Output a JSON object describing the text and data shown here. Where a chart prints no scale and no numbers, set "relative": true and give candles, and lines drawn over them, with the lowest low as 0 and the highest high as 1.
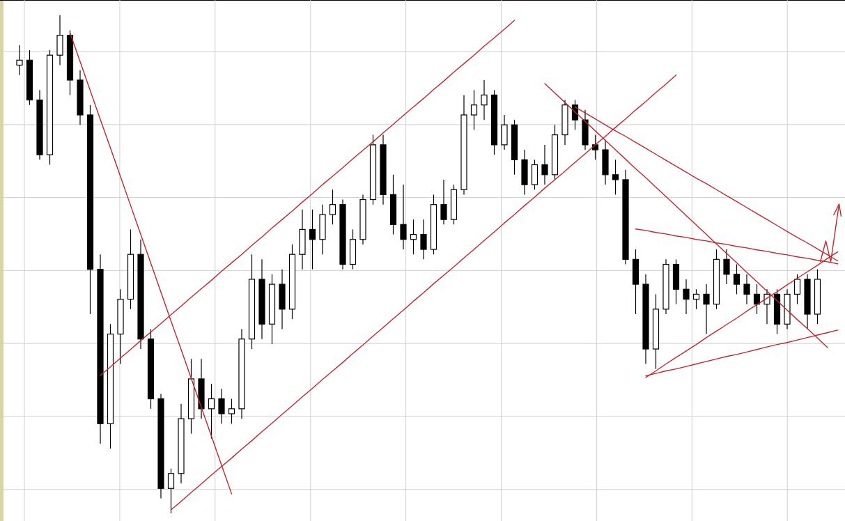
{
  "chart_data": {
    "type": "candlestick",
    "relative": true,
    "grid": true,
    "categories": [
      null,
      null,
      null,
      null,
      null,
      null,
      null,
      null,
      null,
      null,
      null,
      null,
      null,
      null,
      null,
      null,
      null,
      null,
      null,
      null,
      null,
      null,
      null,
      null,
      null,
      null,
      null,
      null,
      null,
      null,
      null,
      null,
      null,
      null,
      null,
      null,
      null,
      null,
      null,
      null,
      null,
      null,
      null,
      null,
      null,
      null,
      null,
      null,
      null,
      null,
      null,
      null,
      null,
      null,
      null,
      null,
      null,
      null,
      null,
      null,
      null,
      null,
      null,
      null,
      null,
      null,
      null,
      null,
      null,
      null,
      null,
      null,
      null,
      null,
      null,
      null,
      null,
      null,
      null,
      null,
      null,
      null
    ],
    "ohlc": [
      [
        0.9,
        0.94,
        0.88,
        0.91
      ],
      [
        0.91,
        0.93,
        0.82,
        0.83
      ],
      [
        0.83,
        0.85,
        0.71,
        0.72
      ],
      [
        0.72,
        0.93,
        0.7,
        0.92
      ],
      [
        0.92,
        1.0,
        0.9,
        0.96
      ],
      [
        0.96,
        0.97,
        0.84,
        0.87
      ],
      [
        0.87,
        0.89,
        0.78,
        0.8
      ],
      [
        0.8,
        0.82,
        0.4,
        0.49
      ],
      [
        0.49,
        0.52,
        0.14,
        0.18
      ],
      [
        0.18,
        0.38,
        0.13,
        0.36
      ],
      [
        0.36,
        0.45,
        0.3,
        0.43
      ],
      [
        0.43,
        0.57,
        0.41,
        0.52
      ],
      [
        0.52,
        0.55,
        0.33,
        0.35
      ],
      [
        0.35,
        0.37,
        0.21,
        0.23
      ],
      [
        0.23,
        0.24,
        0.03,
        0.05
      ],
      [
        0.05,
        0.09,
        0.0,
        0.08
      ],
      [
        0.08,
        0.22,
        0.06,
        0.19
      ],
      [
        0.19,
        0.31,
        0.16,
        0.27
      ],
      [
        0.27,
        0.31,
        0.19,
        0.21
      ],
      [
        0.21,
        0.26,
        0.15,
        0.23
      ],
      [
        0.23,
        0.25,
        0.18,
        0.2
      ],
      [
        0.2,
        0.23,
        0.18,
        0.21
      ],
      [
        0.21,
        0.37,
        0.19,
        0.35
      ],
      [
        0.35,
        0.52,
        0.33,
        0.47
      ],
      [
        0.47,
        0.51,
        0.35,
        0.38
      ],
      [
        0.38,
        0.48,
        0.34,
        0.46
      ],
      [
        0.46,
        0.49,
        0.37,
        0.41
      ],
      [
        0.41,
        0.54,
        0.39,
        0.52
      ],
      [
        0.52,
        0.61,
        0.49,
        0.57
      ],
      [
        0.57,
        0.61,
        0.49,
        0.55
      ],
      [
        0.55,
        0.62,
        0.52,
        0.6
      ],
      [
        0.6,
        0.65,
        0.58,
        0.62
      ],
      [
        0.62,
        0.63,
        0.49,
        0.5
      ],
      [
        0.5,
        0.57,
        0.49,
        0.55
      ],
      [
        0.55,
        0.64,
        0.54,
        0.63
      ],
      [
        0.63,
        0.76,
        0.62,
        0.74
      ],
      [
        0.74,
        0.76,
        0.62,
        0.64
      ],
      [
        0.64,
        0.68,
        0.56,
        0.58
      ],
      [
        0.58,
        0.66,
        0.53,
        0.55
      ],
      [
        0.55,
        0.59,
        0.52,
        0.56
      ],
      [
        0.56,
        0.59,
        0.51,
        0.53
      ],
      [
        0.53,
        0.64,
        0.52,
        0.62
      ],
      [
        0.62,
        0.67,
        0.58,
        0.59
      ],
      [
        0.59,
        0.66,
        0.58,
        0.65
      ],
      [
        0.65,
        0.84,
        0.64,
        0.8
      ],
      [
        0.8,
        0.85,
        0.77,
        0.82
      ],
      [
        0.82,
        0.87,
        0.79,
        0.84
      ],
      [
        0.84,
        0.85,
        0.72,
        0.74
      ],
      [
        0.74,
        0.8,
        0.73,
        0.78
      ],
      [
        0.78,
        0.79,
        0.68,
        0.71
      ],
      [
        0.71,
        0.73,
        0.64,
        0.66
      ],
      [
        0.66,
        0.71,
        0.65,
        0.7
      ],
      [
        0.7,
        0.74,
        0.66,
        0.68
      ],
      [
        0.68,
        0.78,
        0.67,
        0.76
      ],
      [
        0.76,
        0.83,
        0.74,
        0.82
      ],
      [
        0.82,
        0.83,
        0.77,
        0.79
      ],
      [
        0.79,
        0.81,
        0.73,
        0.74
      ],
      [
        0.74,
        0.76,
        0.71,
        0.73
      ],
      [
        0.73,
        0.75,
        0.66,
        0.68
      ],
      [
        0.68,
        0.71,
        0.64,
        0.67
      ],
      [
        0.67,
        0.69,
        0.5,
        0.51
      ],
      [
        0.51,
        0.53,
        0.4,
        0.46
      ],
      [
        0.46,
        0.48,
        0.3,
        0.33
      ],
      [
        0.33,
        0.44,
        0.29,
        0.41
      ],
      [
        0.41,
        0.51,
        0.4,
        0.5
      ],
      [
        0.5,
        0.51,
        0.42,
        0.45
      ],
      [
        0.45,
        0.47,
        0.4,
        0.43
      ],
      [
        0.43,
        0.45,
        0.41,
        0.44
      ],
      [
        0.44,
        0.46,
        0.36,
        0.42
      ],
      [
        0.42,
        0.53,
        0.41,
        0.51
      ],
      [
        0.51,
        0.53,
        0.46,
        0.48
      ],
      [
        0.48,
        0.5,
        0.44,
        0.46
      ],
      [
        0.46,
        0.48,
        0.42,
        0.44
      ],
      [
        0.44,
        0.46,
        0.4,
        0.42
      ],
      [
        0.42,
        0.45,
        0.38,
        0.44
      ],
      [
        0.44,
        0.45,
        0.36,
        0.38
      ],
      [
        0.38,
        0.45,
        0.37,
        0.44
      ],
      [
        0.44,
        0.48,
        0.42,
        0.47
      ],
      [
        0.47,
        0.48,
        0.37,
        0.4
      ],
      [
        0.4,
        0.49,
        0.38,
        0.47
      ],
      null,
      null
    ],
    "series": [
      {
        "type": "line",
        "color": "#c0272d",
        "values": [
          null,
          null,
          null,
          null,
          null,
          0.965,
          0.907,
          0.849,
          0.791,
          0.734,
          0.676,
          0.618,
          0.56,
          0.502,
          0.444,
          0.386,
          0.329,
          0.271,
          0.213,
          0.155,
          0.097,
          0.039,
          null,
          null,
          null,
          null,
          null,
          null,
          null,
          null,
          null,
          null,
          null,
          null,
          null,
          null,
          null,
          null,
          null,
          null,
          null,
          null,
          null,
          null,
          null,
          null,
          null,
          null,
          null,
          null,
          null,
          null,
          null,
          null,
          null,
          null,
          null,
          null,
          null,
          null,
          null,
          null,
          null,
          null,
          null,
          null,
          null,
          null,
          null,
          null,
          null,
          null,
          null,
          null,
          null,
          null,
          null,
          null,
          null,
          null,
          null,
          null
        ]
      },
      {
        "type": "line",
        "color": "#c0272d",
        "values": [
          null,
          null,
          null,
          null,
          null,
          null,
          null,
          null,
          0.277,
          0.294,
          0.312,
          0.329,
          0.347,
          0.364,
          0.381,
          0.399,
          0.416,
          0.434,
          0.451,
          0.468,
          0.486,
          0.503,
          0.52,
          0.538,
          0.555,
          0.573,
          0.59,
          0.607,
          0.625,
          0.642,
          0.66,
          0.677,
          0.694,
          0.712,
          0.729,
          0.746,
          0.764,
          0.781,
          0.799,
          0.816,
          0.833,
          0.851,
          0.868,
          0.886,
          0.903,
          0.92,
          0.938,
          0.955,
          0.972,
          0.99,
          null,
          null,
          null,
          null,
          null,
          null,
          null,
          null,
          null,
          null,
          null,
          null,
          null,
          null,
          null,
          null,
          null,
          null,
          null,
          null,
          null,
          null,
          null,
          null,
          null,
          null,
          null,
          null,
          null,
          null,
          null,
          null
        ]
      },
      {
        "type": "line",
        "color": "#c0272d",
        "values": [
          null,
          null,
          null,
          null,
          null,
          null,
          null,
          null,
          null,
          null,
          null,
          null,
          null,
          null,
          null,
          0.007,
          0.024,
          0.042,
          0.059,
          0.077,
          0.094,
          0.111,
          0.129,
          0.146,
          0.164,
          0.181,
          0.199,
          0.216,
          0.234,
          0.251,
          0.269,
          0.286,
          0.303,
          0.321,
          0.338,
          0.356,
          0.373,
          0.391,
          0.408,
          0.426,
          0.443,
          0.461,
          0.478,
          0.495,
          0.513,
          0.53,
          0.548,
          0.565,
          0.583,
          0.6,
          0.618,
          0.635,
          0.653,
          0.67,
          0.687,
          0.705,
          0.722,
          0.74,
          0.757,
          0.775,
          0.792,
          0.81,
          0.827,
          0.845,
          0.862,
          0.88,
          null,
          null,
          null,
          null,
          null,
          null,
          null,
          null,
          null,
          null,
          null,
          null,
          null,
          null,
          null,
          null
        ]
      },
      {
        "type": "line",
        "color": "#c0272d",
        "values": [
          null,
          null,
          null,
          null,
          null,
          null,
          null,
          null,
          null,
          null,
          null,
          null,
          null,
          null,
          null,
          null,
          null,
          null,
          null,
          null,
          null,
          null,
          null,
          null,
          null,
          null,
          null,
          null,
          null,
          null,
          null,
          null,
          null,
          null,
          null,
          null,
          null,
          null,
          null,
          null,
          null,
          null,
          null,
          null,
          null,
          null,
          null,
          null,
          null,
          null,
          null,
          null,
          0.863,
          0.844,
          0.825,
          0.806,
          0.787,
          0.768,
          0.749,
          0.73,
          0.711,
          0.692,
          0.674,
          0.655,
          0.636,
          0.617,
          0.598,
          0.579,
          0.56,
          0.541,
          0.522,
          0.503,
          0.484,
          0.465,
          0.446,
          0.427,
          0.408,
          0.389,
          0.371,
          0.352,
          0.333,
          null
        ]
      },
      {
        "type": "line",
        "color": "#c0272d",
        "values": [
          null,
          null,
          null,
          null,
          null,
          null,
          null,
          null,
          null,
          null,
          null,
          null,
          null,
          null,
          null,
          null,
          null,
          null,
          null,
          null,
          null,
          null,
          null,
          null,
          null,
          null,
          null,
          null,
          null,
          null,
          null,
          null,
          null,
          null,
          null,
          null,
          null,
          null,
          null,
          null,
          null,
          null,
          null,
          null,
          null,
          null,
          null,
          null,
          null,
          null,
          null,
          null,
          null,
          null,
          null,
          0.816,
          0.804,
          0.792,
          0.78,
          0.768,
          0.757,
          0.745,
          0.733,
          0.721,
          0.709,
          0.697,
          0.685,
          0.673,
          0.662,
          0.65,
          0.638,
          0.626,
          0.614,
          0.602,
          0.59,
          0.578,
          0.566,
          0.554,
          0.543,
          0.531,
          0.519,
          0.507
        ]
      },
      {
        "type": "line",
        "color": "#c0272d",
        "values": [
          null,
          null,
          null,
          null,
          null,
          null,
          null,
          null,
          null,
          null,
          null,
          null,
          null,
          null,
          null,
          null,
          null,
          null,
          null,
          null,
          null,
          null,
          null,
          null,
          null,
          null,
          null,
          null,
          null,
          null,
          null,
          null,
          null,
          null,
          null,
          null,
          null,
          null,
          null,
          null,
          null,
          null,
          null,
          null,
          null,
          null,
          null,
          null,
          null,
          null,
          null,
          null,
          null,
          null,
          null,
          null,
          null,
          null,
          null,
          null,
          null,
          0.571,
          0.568,
          0.564,
          0.561,
          0.557,
          0.554,
          0.55,
          0.547,
          0.543,
          0.54,
          0.536,
          0.533,
          0.529,
          0.526,
          0.522,
          0.519,
          0.515,
          0.512,
          0.508,
          0.505,
          0.501
        ]
      },
      {
        "type": "line",
        "color": "#c0272d",
        "values": [
          null,
          null,
          null,
          null,
          null,
          null,
          null,
          null,
          null,
          null,
          null,
          null,
          null,
          null,
          null,
          null,
          null,
          null,
          null,
          null,
          null,
          null,
          null,
          null,
          null,
          null,
          null,
          null,
          null,
          null,
          null,
          null,
          null,
          null,
          null,
          null,
          null,
          null,
          null,
          null,
          null,
          null,
          null,
          null,
          null,
          null,
          null,
          null,
          null,
          null,
          null,
          null,
          null,
          null,
          null,
          null,
          null,
          null,
          null,
          null,
          null,
          null,
          0.276,
          0.281,
          0.286,
          0.29,
          0.295,
          0.3,
          0.305,
          0.31,
          0.315,
          0.319,
          0.324,
          0.329,
          0.334,
          0.339,
          0.343,
          0.348,
          0.353,
          0.358,
          0.363,
          0.368
        ]
      },
      {
        "type": "line",
        "color": "#c0272d",
        "values": [
          null,
          null,
          null,
          null,
          null,
          null,
          null,
          null,
          null,
          null,
          null,
          null,
          null,
          null,
          null,
          null,
          null,
          null,
          null,
          null,
          null,
          null,
          null,
          null,
          null,
          null,
          null,
          null,
          null,
          null,
          null,
          null,
          null,
          null,
          null,
          null,
          null,
          null,
          null,
          null,
          null,
          null,
          null,
          null,
          null,
          null,
          null,
          null,
          null,
          null,
          null,
          null,
          null,
          null,
          null,
          null,
          null,
          null,
          null,
          null,
          null,
          null,
          0.273,
          0.286,
          0.3,
          0.313,
          0.326,
          0.339,
          0.353,
          0.366,
          0.379,
          0.392,
          0.406,
          0.419,
          0.432,
          0.445,
          0.459,
          0.472,
          0.485,
          0.498,
          0.512,
          0.525
        ]
      }
    ]
  }
}
